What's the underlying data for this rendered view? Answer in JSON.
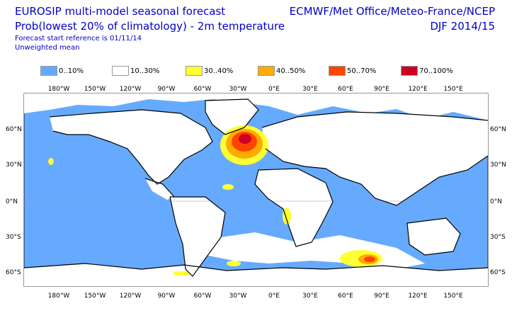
{
  "header": {
    "title_line1": "EUROSIP multi-model seasonal forecast",
    "title_line2": "Prob(lowest 20% of climatology) - 2m temperature",
    "subtitle_line1": "Forecast start reference is 01/11/14",
    "subtitle_line2": "Unweighted mean",
    "centres": "ECMWF/Met Office/Meteo-France/NCEP",
    "period": "DJF 2014/15"
  },
  "legend": [
    {
      "label": "0..10%",
      "color": "#66aaff"
    },
    {
      "label": "10..30%",
      "color": "#ffffff"
    },
    {
      "label": "30..40%",
      "color": "#ffff33"
    },
    {
      "label": "40..50%",
      "color": "#ffaa00"
    },
    {
      "label": "50..70%",
      "color": "#ff4400"
    },
    {
      "label": "70..100%",
      "color": "#cc0022"
    }
  ],
  "map": {
    "lon_ticks": [
      "180°W",
      "150°W",
      "120°W",
      "90°W",
      "60°W",
      "30°W",
      "0°E",
      "30°E",
      "60°E",
      "90°E",
      "120°E",
      "150°E"
    ],
    "lat_ticks": [
      "60°N",
      "30°N",
      "0°N",
      "30°S",
      "60°S"
    ],
    "colors": {
      "ocean": "#66aaff",
      "land": "#ffffff",
      "coast": "#000000",
      "grid": "#9999bb"
    }
  }
}
